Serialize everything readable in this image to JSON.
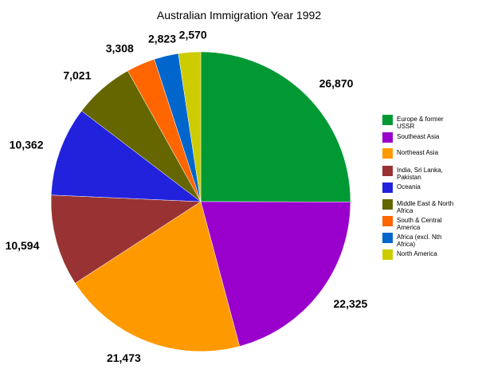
{
  "chart_data": {
    "type": "pie",
    "title": "Australian Immigration Year 1992",
    "categories": [
      "Europe & former USSR",
      "Southeast Asia",
      "Northeast Asia",
      "India, Sri Lanka, Pakistan",
      "Oceania",
      "Middle East & North Africa",
      "South & Central America",
      "Africa (excl. Nth Africa)",
      "North America"
    ],
    "legend_lines": [
      [
        "Europe & former",
        "USSR"
      ],
      [
        "Southeast Asia"
      ],
      [
        "Northeast Asia"
      ],
      [
        "India, Sri Lanka,",
        "Pakistan"
      ],
      [
        "Oceania"
      ],
      [
        "Middle East & North",
        "Africa"
      ],
      [
        "South & Central",
        "America"
      ],
      [
        "Africa (excl. Nth",
        "Africa)"
      ],
      [
        "North America"
      ]
    ],
    "values": [
      26870,
      22325,
      21473,
      10594,
      10362,
      7021,
      3308,
      2823,
      2570
    ],
    "value_labels": [
      "26,870",
      "22,325",
      "21,473",
      "10,594",
      "10,362",
      "7,021",
      "3,308",
      "2,823",
      "2,570"
    ],
    "colors": [
      "#009933",
      "#9900cc",
      "#ff9900",
      "#993333",
      "#2222dd",
      "#666600",
      "#ff6600",
      "#0066cc",
      "#cccc00"
    ],
    "legend_position": "right"
  }
}
